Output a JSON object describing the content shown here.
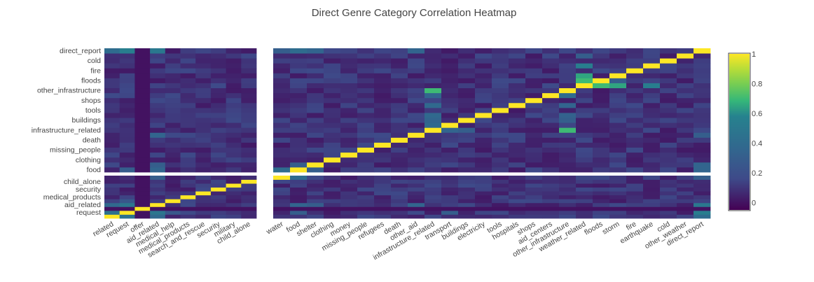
{
  "chart_data": {
    "type": "heatmap",
    "title": "Direct Genre Category Correlation Heatmap",
    "x_categories": [
      "related",
      "request",
      "offer",
      "aid_related",
      "medical_help",
      "medical_products",
      "search_and_rescue",
      "security",
      "military",
      "child_alone",
      "water",
      "food",
      "shelter",
      "clothing",
      "money",
      "missing_people",
      "refugees",
      "death",
      "other_aid",
      "infrastructure_related",
      "transport",
      "buildings",
      "electricity",
      "tools",
      "hospitals",
      "shops",
      "aid_centers",
      "other_infrastructure",
      "weather_related",
      "floods",
      "storm",
      "fire",
      "earthquake",
      "cold",
      "other_weather",
      "direct_report"
    ],
    "y_tick_labels": [
      "request",
      "aid_related",
      "medical_products",
      "security",
      "child_alone",
      "food",
      "clothing",
      "missing_people",
      "death",
      "infrastructure_related",
      "buildings",
      "tools",
      "shops",
      "other_infrastructure",
      "floods",
      "fire",
      "cold",
      "direct_report"
    ],
    "shown_x_tick_labels": [
      "related",
      "request",
      "offer",
      "aid_related",
      "medical_help",
      "medical_products",
      "search_and_rescue",
      "security",
      "military",
      "child_alone",
      "water",
      "food",
      "shelter",
      "clothing",
      "money",
      "missing_people",
      "refugees",
      "death",
      "other_aid",
      "infrastructure_related",
      "transport",
      "buildings",
      "electricity",
      "tools",
      "hospitals",
      "shops",
      "aid_centers",
      "other_infrastructure",
      "weather_related",
      "floods",
      "storm",
      "fire",
      "earthquake",
      "cold",
      "other_weather",
      "direct_report"
    ],
    "y_categories_bottom_to_top": [
      "related",
      "request",
      "offer",
      "aid_related",
      "medical_help",
      "medical_products",
      "search_and_rescue",
      "security",
      "military",
      "child_alone",
      "water",
      "food",
      "shelter",
      "clothing",
      "money",
      "missing_people",
      "refugees",
      "death",
      "other_aid",
      "infrastructure_related",
      "transport",
      "buildings",
      "electricity",
      "tools",
      "hospitals",
      "shops",
      "aid_centers",
      "other_infrastructure",
      "weather_related",
      "floods",
      "storm",
      "fire",
      "earthquake",
      "cold",
      "other_weather",
      "direct_report"
    ],
    "x_split_after": "child_alone",
    "y_split_after": "water",
    "zrange": [
      -0.05,
      1
    ],
    "colorscale": "Viridis",
    "colorbar_ticks": [
      "1",
      "0.8",
      "0.6",
      "0.4",
      "0.2",
      "0"
    ],
    "highlights": [
      {
        "x": "request",
        "y": "related",
        "value": 0.45
      },
      {
        "x": "related",
        "y": "request",
        "value": 0.45
      },
      {
        "x": "aid_related",
        "y": "related",
        "value": 0.38
      },
      {
        "x": "aid_related",
        "y": "request",
        "value": 0.48
      },
      {
        "x": "request",
        "y": "aid_related",
        "value": 0.48
      },
      {
        "x": "related",
        "y": "aid_related",
        "value": 0.38
      },
      {
        "x": "request",
        "y": "direct_report",
        "value": 0.55
      },
      {
        "x": "related",
        "y": "direct_report",
        "value": 0.4
      },
      {
        "x": "aid_related",
        "y": "direct_report",
        "value": 0.5
      },
      {
        "x": "direct_report",
        "y": "request",
        "value": 0.55
      },
      {
        "x": "direct_report",
        "y": "related",
        "value": 0.4
      },
      {
        "x": "direct_report",
        "y": "aid_related",
        "value": 0.5
      },
      {
        "x": "aid_related",
        "y": "water",
        "value": 0.3
      },
      {
        "x": "aid_related",
        "y": "food",
        "value": 0.35
      },
      {
        "x": "food",
        "y": "aid_related",
        "value": 0.35
      },
      {
        "x": "aid_related",
        "y": "shelter",
        "value": 0.3
      },
      {
        "x": "shelter",
        "y": "aid_related",
        "value": 0.3
      },
      {
        "x": "aid_related",
        "y": "other_aid",
        "value": 0.35
      },
      {
        "x": "other_aid",
        "y": "aid_related",
        "value": 0.35
      },
      {
        "x": "request",
        "y": "food",
        "value": 0.3
      },
      {
        "x": "food",
        "y": "request",
        "value": 0.3
      },
      {
        "x": "water",
        "y": "food",
        "value": 0.4
      },
      {
        "x": "food",
        "y": "water",
        "value": 0.4
      },
      {
        "x": "food",
        "y": "shelter",
        "value": 0.3
      },
      {
        "x": "shelter",
        "y": "food",
        "value": 0.3
      },
      {
        "x": "transport",
        "y": "infrastructure_related",
        "value": 0.35
      },
      {
        "x": "buildings",
        "y": "infrastructure_related",
        "value": 0.3
      },
      {
        "x": "weather_related",
        "y": "floods",
        "value": 0.7
      },
      {
        "x": "floods",
        "y": "weather_related",
        "value": 0.7
      },
      {
        "x": "weather_related",
        "y": "storm",
        "value": 0.65
      },
      {
        "x": "storm",
        "y": "weather_related",
        "value": 0.65
      },
      {
        "x": "weather_related",
        "y": "earthquake",
        "value": 0.55
      },
      {
        "x": "earthquake",
        "y": "weather_related",
        "value": 0.55
      },
      {
        "x": "infrastructure_related",
        "y": "buildings",
        "value": 0.35
      },
      {
        "x": "infrastructure_related",
        "y": "electricity",
        "value": 0.38
      },
      {
        "x": "infrastructure_related",
        "y": "hospitals",
        "value": 0.38
      },
      {
        "x": "infrastructure_related",
        "y": "aid_centers",
        "value": 0.35
      },
      {
        "x": "infrastructure_related",
        "y": "other_infrastructure",
        "value": 0.7
      },
      {
        "x": "infrastructure_related",
        "y": "transport",
        "value": 0.38
      },
      {
        "x": "other_infrastructure",
        "y": "infrastructure_related",
        "value": 0.7
      },
      {
        "x": "other_infrastructure",
        "y": "buildings",
        "value": 0.3
      },
      {
        "x": "other_infrastructure",
        "y": "electricity",
        "value": 0.33
      },
      {
        "x": "other_infrastructure",
        "y": "hospitals",
        "value": 0.35
      },
      {
        "x": "other_infrastructure",
        "y": "aid_centers",
        "value": 0.4
      },
      {
        "x": "weather_related",
        "y": "water",
        "value": 0.15
      },
      {
        "x": "direct_report",
        "y": "water",
        "value": 0.3
      },
      {
        "x": "direct_report",
        "y": "food",
        "value": 0.35
      },
      {
        "x": "direct_report",
        "y": "shelter",
        "value": 0.35
      },
      {
        "x": "direct_report",
        "y": "other_aid",
        "value": 0.3
      },
      {
        "x": "food",
        "y": "direct_report",
        "value": 0.4
      },
      {
        "x": "shelter",
        "y": "direct_report",
        "value": 0.35
      },
      {
        "x": "water",
        "y": "direct_report",
        "value": 0.3
      },
      {
        "x": "other_aid",
        "y": "direct_report",
        "value": 0.35
      },
      {
        "x": "transport",
        "y": "request",
        "value": 0.3
      },
      {
        "x": "request",
        "y": "medical_help",
        "value": 0.25
      },
      {
        "x": "medical_help",
        "y": "request",
        "value": 0.25
      },
      {
        "x": "weather_related",
        "y": "other_weather",
        "value": 0.3
      },
      {
        "x": "storm",
        "y": "floods",
        "value": 0.3
      }
    ]
  }
}
